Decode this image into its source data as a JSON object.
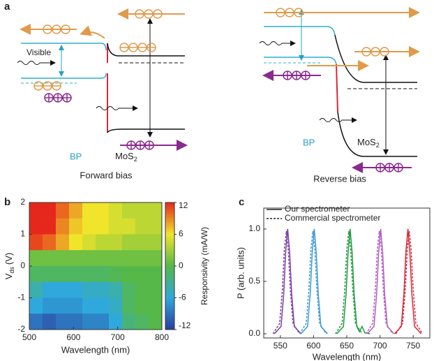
{
  "panel_a": {
    "label": "a",
    "visible": "Visible",
    "left": {
      "bp": "BP",
      "mos": "MoS",
      "mos_sub": "2",
      "caption": "Forward bias"
    },
    "right": {
      "bp": "BP",
      "mos": "MoS",
      "mos_sub": "2",
      "caption": "Reverse bias"
    }
  },
  "chart_data": [
    {
      "type": "heatmap",
      "panel_label": "b",
      "xlabel": "Wavelength (nm)",
      "ylabel": "V",
      "ylabel_sub": "ds",
      "ylabel_unit": "(V)",
      "xlim": [
        500,
        800
      ],
      "ylim": [
        -2,
        2
      ],
      "xticks": [
        500,
        600,
        700,
        800
      ],
      "yticks": [
        -2,
        -1,
        0,
        1,
        2
      ],
      "x_edges": [
        500,
        530,
        560,
        590,
        620,
        650,
        680,
        710,
        740,
        770,
        800
      ],
      "y_edges": [
        2,
        1.5,
        1,
        0.5,
        0,
        -0.5,
        -1,
        -1.5,
        -2
      ],
      "z": [
        [
          12,
          12,
          10,
          8,
          6,
          6,
          5,
          4,
          4,
          4
        ],
        [
          12,
          12,
          9,
          7,
          6,
          6,
          5,
          5,
          4,
          4
        ],
        [
          11,
          10,
          8,
          6,
          5,
          4,
          4,
          3,
          3,
          3
        ],
        [
          1,
          1,
          1,
          1,
          1,
          1,
          1,
          1,
          1,
          1
        ],
        [
          -1,
          -1,
          -1,
          -1,
          -1,
          -1,
          -0.5,
          0,
          0,
          0
        ],
        [
          -4,
          -6,
          -6,
          -6,
          -5,
          -5,
          -4,
          -1,
          0,
          0
        ],
        [
          -6,
          -7,
          -7,
          -7,
          -6,
          -6,
          -5,
          -1,
          0,
          0
        ],
        [
          -9,
          -10,
          -9,
          -9,
          -8,
          -8,
          -6,
          -2,
          -1,
          0
        ]
      ],
      "colorbar": {
        "label": "Responsivity (mA/W)",
        "lim": [
          -12,
          12
        ],
        "ticks": [
          -12,
          -6,
          0,
          6,
          12
        ],
        "colors": [
          "#2a3c9e",
          "#2fa9dc",
          "#55b848",
          "#f0e52a",
          "#e6281c"
        ]
      }
    },
    {
      "type": "line",
      "panel_label": "c",
      "xlabel": "Wavelength (nm)",
      "ylabel": "P (arb. units)",
      "xlim": [
        525,
        775
      ],
      "ylim": [
        -0.04,
        1.2
      ],
      "xticks": [
        550,
        600,
        650,
        700,
        750
      ],
      "yticks": [
        {
          "value": 0,
          "label": "0.0"
        },
        {
          "value": 0.5,
          "label": "0.5"
        },
        {
          "value": 1,
          "label": "1.0"
        }
      ],
      "legend": [
        {
          "name": "Our spectrometer",
          "dash": "solid"
        },
        {
          "name": "Commercial spectrometer",
          "dash": "dashed"
        }
      ],
      "series": [
        {
          "color": "#7b3f9e",
          "dash": "solid",
          "x": [
            541,
            551,
            555,
            558,
            561,
            564,
            567,
            571,
            581
          ],
          "values": [
            0,
            0.07,
            0.38,
            0.78,
            1,
            0.78,
            0.38,
            0.07,
            0
          ]
        },
        {
          "color": "#7b3f9e",
          "dash": "dashed",
          "x": [
            539,
            549,
            553,
            556,
            559,
            562,
            565,
            569,
            579
          ],
          "values": [
            0,
            0.1,
            0.42,
            0.8,
            0.98,
            0.8,
            0.42,
            0.1,
            0
          ]
        },
        {
          "color": "#3a9ad9",
          "dash": "solid",
          "x": [
            581,
            591,
            595,
            598,
            601,
            604,
            607,
            611,
            621
          ],
          "values": [
            0,
            0.07,
            0.38,
            0.78,
            1,
            0.78,
            0.38,
            0.07,
            0
          ]
        },
        {
          "color": "#3a9ad9",
          "dash": "dashed",
          "x": [
            579,
            589,
            593,
            596,
            599,
            602,
            605,
            609,
            619
          ],
          "values": [
            0,
            0.1,
            0.42,
            0.8,
            0.98,
            0.8,
            0.42,
            0.1,
            0
          ]
        },
        {
          "color": "#1f9a3e",
          "dash": "solid",
          "x": [
            635,
            645,
            649,
            652,
            655,
            658,
            661,
            665,
            669,
            673,
            677,
            685
          ],
          "values": [
            0,
            0.07,
            0.38,
            0.78,
            1,
            0.78,
            0.38,
            0.07,
            0.02,
            0.07,
            0.01,
            0
          ]
        },
        {
          "color": "#1f9a3e",
          "dash": "dashed",
          "x": [
            633,
            643,
            647,
            650,
            653,
            656,
            659,
            663,
            673
          ],
          "values": [
            0,
            0.1,
            0.42,
            0.8,
            0.98,
            0.8,
            0.42,
            0.1,
            0
          ]
        },
        {
          "color": "#b05dc0",
          "dash": "solid",
          "x": [
            681,
            691,
            695,
            698,
            701,
            704,
            707,
            711,
            721
          ],
          "values": [
            0,
            0.07,
            0.38,
            0.78,
            1,
            0.78,
            0.38,
            0.07,
            0
          ]
        },
        {
          "color": "#b05dc0",
          "dash": "dashed",
          "x": [
            679,
            689,
            693,
            696,
            699,
            702,
            705,
            709,
            719
          ],
          "values": [
            0,
            0.1,
            0.42,
            0.8,
            0.98,
            0.8,
            0.42,
            0.1,
            0
          ]
        },
        {
          "color": "#d8283a",
          "dash": "solid",
          "x": [
            722,
            732,
            736,
            739,
            742,
            745,
            748,
            752,
            762
          ],
          "values": [
            0,
            0.07,
            0.38,
            0.78,
            1,
            0.78,
            0.38,
            0.07,
            0
          ]
        },
        {
          "color": "#d8283a",
          "dash": "dashed",
          "x": [
            724,
            734,
            738,
            741,
            744,
            747,
            750,
            754,
            764
          ],
          "values": [
            0,
            0.1,
            0.42,
            0.8,
            0.98,
            0.8,
            0.42,
            0.1,
            0
          ]
        }
      ]
    }
  ]
}
